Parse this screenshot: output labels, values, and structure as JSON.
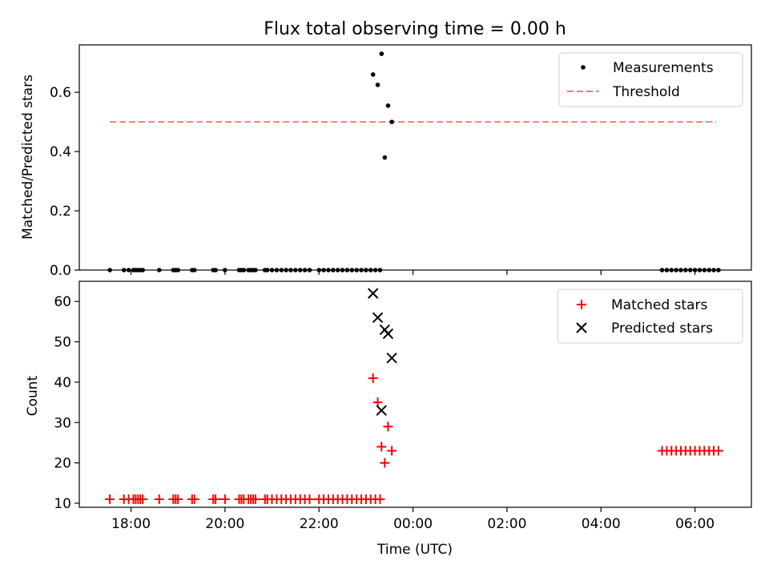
{
  "chart_data": [
    {
      "type": "scatter",
      "title": "Flux total observing time = 0.00 h",
      "xlabel": "",
      "ylabel": "Matched/Predicted stars",
      "xlim": [
        16.9,
        31.2
      ],
      "ylim": [
        0,
        0.76
      ],
      "yticks": [
        0.0,
        0.2,
        0.4,
        0.6
      ],
      "ytick_labels": [
        "0.0",
        "0.2",
        "0.4",
        "0.6"
      ],
      "legend": {
        "location": "upper right",
        "entries": [
          "Measurements",
          "Threshold"
        ]
      },
      "threshold": {
        "name": "Threshold",
        "y": 0.5,
        "x": [
          17.55,
          30.45
        ],
        "color": "#ff7a7a"
      },
      "series": [
        {
          "name": "Measurements",
          "color": "#000000",
          "x": [
            17.55,
            17.85,
            17.95,
            18.05,
            18.1,
            18.15,
            18.2,
            18.25,
            18.6,
            18.9,
            18.95,
            19.0,
            19.3,
            19.35,
            19.75,
            19.8,
            20.0,
            20.3,
            20.35,
            20.4,
            20.5,
            20.55,
            20.6,
            20.65,
            20.85,
            20.9,
            21.0,
            21.1,
            21.2,
            21.3,
            21.4,
            21.5,
            21.6,
            21.7,
            21.8,
            22.0,
            22.1,
            22.2,
            22.3,
            22.4,
            22.5,
            22.6,
            22.7,
            22.8,
            22.9,
            23.0,
            23.1,
            23.2,
            23.3,
            23.15,
            23.25,
            23.33,
            23.4,
            23.47,
            23.55,
            29.3,
            29.4,
            29.5,
            29.6,
            29.7,
            29.8,
            29.9,
            30.0,
            30.1,
            30.2,
            30.3,
            30.4,
            30.5
          ],
          "y": [
            0,
            0,
            0,
            0,
            0,
            0,
            0,
            0,
            0,
            0,
            0,
            0,
            0,
            0,
            0,
            0,
            0,
            0,
            0,
            0,
            0,
            0,
            0,
            0,
            0,
            0,
            0,
            0,
            0,
            0,
            0,
            0,
            0,
            0,
            0,
            0,
            0,
            0,
            0,
            0,
            0,
            0,
            0,
            0,
            0,
            0,
            0,
            0,
            0,
            0.66,
            0.625,
            0.73,
            0.38,
            0.555,
            0.5,
            0,
            0,
            0,
            0,
            0,
            0,
            0,
            0,
            0,
            0,
            0,
            0,
            0
          ]
        }
      ]
    },
    {
      "type": "scatter",
      "title": "",
      "xlabel": "Time (UTC)",
      "ylabel": "Count",
      "xlim": [
        16.9,
        31.2
      ],
      "ylim": [
        9,
        65
      ],
      "yticks": [
        10,
        20,
        30,
        40,
        50,
        60
      ],
      "ytick_labels": [
        "10",
        "20",
        "30",
        "40",
        "50",
        "60"
      ],
      "xticks": [
        18,
        20,
        22,
        24,
        26,
        28,
        30
      ],
      "xtick_labels": [
        "18:00",
        "20:00",
        "22:00",
        "00:00",
        "02:00",
        "04:00",
        "06:00"
      ],
      "legend": {
        "location": "upper right",
        "entries": [
          "Matched stars",
          "Predicted stars"
        ]
      },
      "series": [
        {
          "name": "Matched stars",
          "color": "#ff0000",
          "marker": "plus",
          "x": [
            17.55,
            17.85,
            17.95,
            18.05,
            18.1,
            18.15,
            18.2,
            18.25,
            18.6,
            18.9,
            18.95,
            19.0,
            19.3,
            19.35,
            19.75,
            19.8,
            20.0,
            20.3,
            20.35,
            20.4,
            20.5,
            20.55,
            20.6,
            20.65,
            20.85,
            20.9,
            21.0,
            21.1,
            21.2,
            21.3,
            21.4,
            21.5,
            21.6,
            21.7,
            21.8,
            22.0,
            22.1,
            22.2,
            22.3,
            22.4,
            22.5,
            22.6,
            22.7,
            22.8,
            22.9,
            23.0,
            23.1,
            23.2,
            23.3,
            23.15,
            23.25,
            23.33,
            23.4,
            23.47,
            23.55,
            29.3,
            29.4,
            29.5,
            29.6,
            29.7,
            29.8,
            29.9,
            30.0,
            30.1,
            30.2,
            30.3,
            30.4,
            30.5
          ],
          "y": [
            11,
            11,
            11,
            11,
            11,
            11,
            11,
            11,
            11,
            11,
            11,
            11,
            11,
            11,
            11,
            11,
            11,
            11,
            11,
            11,
            11,
            11,
            11,
            11,
            11,
            11,
            11,
            11,
            11,
            11,
            11,
            11,
            11,
            11,
            11,
            11,
            11,
            11,
            11,
            11,
            11,
            11,
            11,
            11,
            11,
            11,
            11,
            11,
            11,
            41,
            35,
            24,
            20,
            29,
            23,
            23,
            23,
            23,
            23,
            23,
            23,
            23,
            23,
            23,
            23,
            23,
            23,
            23
          ]
        },
        {
          "name": "Predicted stars",
          "color": "#000000",
          "marker": "x",
          "x": [
            23.15,
            23.25,
            23.33,
            23.4,
            23.47,
            23.55
          ],
          "y": [
            62,
            56,
            33,
            53,
            52,
            46
          ]
        }
      ]
    }
  ]
}
